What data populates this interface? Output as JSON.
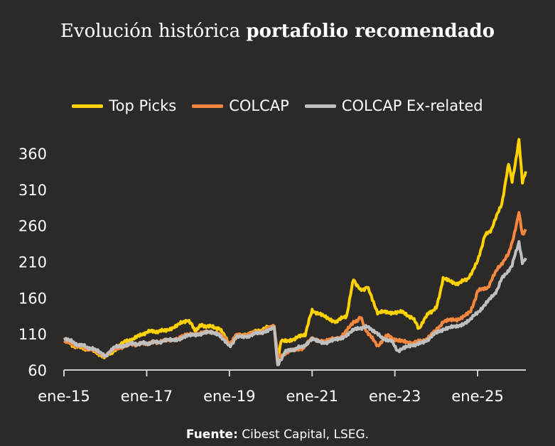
{
  "title": {
    "normal": "Evolución histórica ",
    "bold": "portafolio recomendado"
  },
  "footer": {
    "label": "Fuente:",
    "text": " Cibest Capital, LSEG."
  },
  "chart_data": {
    "type": "line",
    "title": "Evolución histórica portafolio recomendado",
    "xlabel": "",
    "ylabel": "",
    "ylim": [
      60,
      360
    ],
    "yticks": [
      60,
      110,
      160,
      210,
      260,
      310,
      360
    ],
    "xticks": [
      "ene-15",
      "ene-17",
      "ene-19",
      "ene-21",
      "ene-23",
      "ene-25"
    ],
    "xlim": [
      "2015-01",
      "2026-03"
    ],
    "grid": false,
    "legend": "top",
    "series": [
      {
        "name": "Top Picks",
        "color": "#FFD200",
        "points": [
          [
            "2015-01",
            103
          ],
          [
            "2015-04",
            93
          ],
          [
            "2015-09",
            88
          ],
          [
            "2016-01",
            78
          ],
          [
            "2016-03",
            85
          ],
          [
            "2016-07",
            100
          ],
          [
            "2016-10",
            105
          ],
          [
            "2017-01",
            113
          ],
          [
            "2017-06",
            114
          ],
          [
            "2017-10",
            122
          ],
          [
            "2018-01",
            130
          ],
          [
            "2018-03",
            115
          ],
          [
            "2018-05",
            122
          ],
          [
            "2018-10",
            118
          ],
          [
            "2019-01",
            97
          ],
          [
            "2019-04",
            108
          ],
          [
            "2019-08",
            112
          ],
          [
            "2020-01",
            120
          ],
          [
            "2020-02",
            120
          ],
          [
            "2020-03",
            72
          ],
          [
            "2020-04",
            100
          ],
          [
            "2020-08",
            103
          ],
          [
            "2020-11",
            110
          ],
          [
            "2021-01",
            143
          ],
          [
            "2021-04",
            135
          ],
          [
            "2021-08",
            127
          ],
          [
            "2021-11",
            135
          ],
          [
            "2022-01",
            186
          ],
          [
            "2022-03",
            170
          ],
          [
            "2022-05",
            175
          ],
          [
            "2022-08",
            140
          ],
          [
            "2022-11",
            140
          ],
          [
            "2023-03",
            140
          ],
          [
            "2023-06",
            133
          ],
          [
            "2023-08",
            118
          ],
          [
            "2023-11",
            140
          ],
          [
            "2024-01",
            145
          ],
          [
            "2024-03",
            186
          ],
          [
            "2024-07",
            180
          ],
          [
            "2024-10",
            185
          ],
          [
            "2025-01",
            210
          ],
          [
            "2025-03",
            245
          ],
          [
            "2025-05",
            255
          ],
          [
            "2025-08",
            290
          ],
          [
            "2025-10",
            345
          ],
          [
            "2025-11",
            320
          ],
          [
            "2026-01",
            378
          ],
          [
            "2026-02",
            320
          ],
          [
            "2026-03",
            335
          ]
        ]
      },
      {
        "name": "COLCAP",
        "color": "#F5873E",
        "points": [
          [
            "2015-01",
            100
          ],
          [
            "2015-04",
            95
          ],
          [
            "2015-09",
            88
          ],
          [
            "2016-01",
            80
          ],
          [
            "2016-04",
            90
          ],
          [
            "2016-08",
            95
          ],
          [
            "2017-01",
            97
          ],
          [
            "2017-06",
            100
          ],
          [
            "2017-10",
            104
          ],
          [
            "2018-02",
            110
          ],
          [
            "2018-06",
            112
          ],
          [
            "2018-10",
            112
          ],
          [
            "2019-01",
            96
          ],
          [
            "2019-03",
            108
          ],
          [
            "2019-07",
            110
          ],
          [
            "2019-10",
            113
          ],
          [
            "2020-02",
            120
          ],
          [
            "2020-03",
            78
          ],
          [
            "2020-06",
            85
          ],
          [
            "2020-10",
            90
          ],
          [
            "2021-01",
            103
          ],
          [
            "2021-05",
            100
          ],
          [
            "2021-09",
            105
          ],
          [
            "2022-01",
            125
          ],
          [
            "2022-03",
            133
          ],
          [
            "2022-05",
            112
          ],
          [
            "2022-08",
            94
          ],
          [
            "2022-11",
            108
          ],
          [
            "2023-02",
            100
          ],
          [
            "2023-06",
            98
          ],
          [
            "2023-09",
            100
          ],
          [
            "2023-12",
            110
          ],
          [
            "2024-03",
            127
          ],
          [
            "2024-07",
            130
          ],
          [
            "2024-11",
            140
          ],
          [
            "2025-01",
            169
          ],
          [
            "2025-04",
            175
          ],
          [
            "2025-07",
            202
          ],
          [
            "2025-10",
            220
          ],
          [
            "2025-12",
            255
          ],
          [
            "2026-01",
            279
          ],
          [
            "2026-02",
            248
          ],
          [
            "2026-03",
            255
          ]
        ]
      },
      {
        "name": "COLCAP Ex-related",
        "color": "#BFBFBF",
        "points": [
          [
            "2015-01",
            105
          ],
          [
            "2015-04",
            97
          ],
          [
            "2015-09",
            90
          ],
          [
            "2016-01",
            80
          ],
          [
            "2016-04",
            92
          ],
          [
            "2016-08",
            96
          ],
          [
            "2017-01",
            97
          ],
          [
            "2017-06",
            100
          ],
          [
            "2017-10",
            103
          ],
          [
            "2018-02",
            108
          ],
          [
            "2018-06",
            112
          ],
          [
            "2018-10",
            110
          ],
          [
            "2019-01",
            92
          ],
          [
            "2019-03",
            105
          ],
          [
            "2019-07",
            108
          ],
          [
            "2019-10",
            112
          ],
          [
            "2020-02",
            118
          ],
          [
            "2020-03",
            65
          ],
          [
            "2020-05",
            85
          ],
          [
            "2020-10",
            92
          ],
          [
            "2021-01",
            102
          ],
          [
            "2021-05",
            98
          ],
          [
            "2021-09",
            103
          ],
          [
            "2022-01",
            115
          ],
          [
            "2022-04",
            120
          ],
          [
            "2022-06",
            118
          ],
          [
            "2022-09",
            105
          ],
          [
            "2022-12",
            100
          ],
          [
            "2023-02",
            86
          ],
          [
            "2023-06",
            95
          ],
          [
            "2023-09",
            97
          ],
          [
            "2023-12",
            108
          ],
          [
            "2024-03",
            117
          ],
          [
            "2024-07",
            120
          ],
          [
            "2024-11",
            130
          ],
          [
            "2025-02",
            145
          ],
          [
            "2025-06",
            165
          ],
          [
            "2025-08",
            186
          ],
          [
            "2025-11",
            205
          ],
          [
            "2026-01",
            238
          ],
          [
            "2026-02",
            210
          ],
          [
            "2026-03",
            215
          ]
        ]
      }
    ]
  }
}
